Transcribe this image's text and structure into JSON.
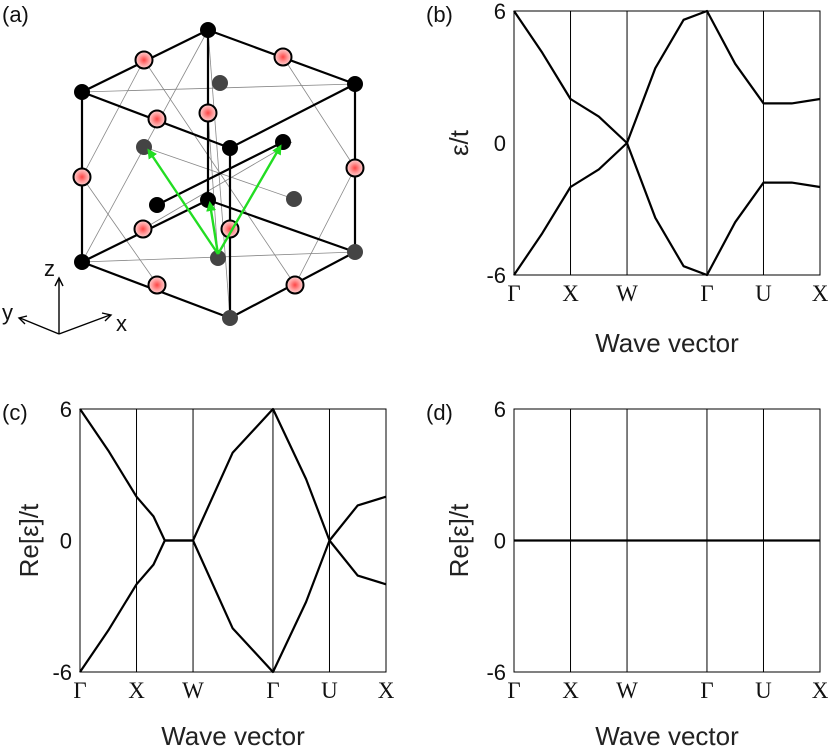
{
  "panels": {
    "a": {
      "label": "(a)",
      "axes": {
        "x": "x",
        "y": "y",
        "z": "z"
      }
    },
    "b": {
      "label": "(b)"
    },
    "c": {
      "label": "(c)"
    },
    "d": {
      "label": "(d)"
    }
  },
  "colors": {
    "curve": "#000000",
    "arrow": "#22dd22",
    "red_site": "#ee3333",
    "black_site": "#000000",
    "gray_site": "#444444"
  },
  "chart_data": [
    {
      "id": "b",
      "type": "line",
      "ylabel": "ε/t",
      "xlabel": "Wave vector",
      "ylim": [
        -6,
        6
      ],
      "yticks": [
        -6,
        0,
        6
      ],
      "kpoints": [
        "Γ",
        "X",
        "W",
        "Γ",
        "U",
        "X"
      ],
      "kpos": [
        0,
        1,
        2,
        3.4142,
        4.4142,
        5.4142
      ],
      "series": [
        {
          "x": [
            0,
            0.5,
            1,
            1.5,
            2,
            2.5,
            3,
            3.4142,
            3.9142,
            4.4142,
            4.9142,
            5.4142
          ],
          "values": [
            6,
            4.1,
            2,
            1.2,
            0,
            -3.4,
            -5.6,
            -6,
            -3.6,
            -1.8,
            -1.8,
            -2
          ]
        },
        {
          "x": [
            0,
            0.5,
            1,
            1.5,
            2,
            2.5,
            3,
            3.4142,
            3.9142,
            4.4142,
            4.9142,
            5.4142
          ],
          "values": [
            -6,
            -4.1,
            -2,
            -1.2,
            0,
            3.4,
            5.6,
            6,
            3.6,
            1.8,
            1.8,
            2
          ]
        }
      ]
    },
    {
      "id": "c",
      "type": "line",
      "ylabel": "Re[ε]/t",
      "xlabel": "Wave vector",
      "ylim": [
        -6,
        6
      ],
      "yticks": [
        -6,
        0,
        6
      ],
      "kpoints": [
        "Γ",
        "X",
        "W",
        "Γ",
        "U",
        "X"
      ],
      "kpos": [
        0,
        1,
        2,
        3.4142,
        4.4142,
        5.4142
      ],
      "series": [
        {
          "x": [
            0,
            0.5,
            1,
            1.3,
            1.5,
            2,
            2.7,
            3.4142,
            4.0,
            4.4142,
            4.9142,
            5.4142
          ],
          "values": [
            6,
            4.1,
            2,
            1.1,
            0,
            0,
            4.0,
            6,
            2.8,
            0,
            1.6,
            2
          ]
        },
        {
          "x": [
            0,
            0.5,
            1,
            1.3,
            1.5,
            2,
            2.7,
            3.4142,
            4.0,
            4.4142,
            4.9142,
            5.4142
          ],
          "values": [
            -6,
            -4.1,
            -2,
            -1.1,
            0,
            0,
            -4.0,
            -6,
            -2.8,
            0,
            -1.6,
            -2
          ]
        }
      ]
    },
    {
      "id": "d",
      "type": "line",
      "ylabel": "Re[ε]/t",
      "xlabel": "Wave vector",
      "ylim": [
        -6,
        6
      ],
      "yticks": [
        -6,
        0,
        6
      ],
      "kpoints": [
        "Γ",
        "X",
        "W",
        "Γ",
        "U",
        "X"
      ],
      "kpos": [
        0,
        1,
        2,
        3.4142,
        4.4142,
        5.4142
      ],
      "series": [
        {
          "x": [
            0,
            5.4142
          ],
          "values": [
            0,
            0
          ]
        }
      ]
    }
  ]
}
